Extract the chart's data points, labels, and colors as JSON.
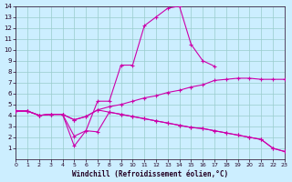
{
  "xlabel": "Windchill (Refroidissement éolien,°C)",
  "bg_color": "#cceeff",
  "line_color": "#cc00aa",
  "grid_color": "#99cccc",
  "xlim": [
    0,
    23
  ],
  "ylim": [
    0,
    14
  ],
  "xticks": [
    0,
    1,
    2,
    3,
    4,
    5,
    6,
    7,
    8,
    9,
    10,
    11,
    12,
    13,
    14,
    15,
    16,
    17,
    18,
    19,
    20,
    21,
    22,
    23
  ],
  "yticks": [
    1,
    2,
    3,
    4,
    5,
    6,
    7,
    8,
    9,
    10,
    11,
    12,
    13,
    14
  ],
  "lines": [
    {
      "x": [
        0,
        1,
        2,
        3,
        4,
        5,
        6,
        7,
        8,
        9,
        10,
        11,
        12,
        13,
        14,
        15,
        16,
        17
      ],
      "y": [
        4.4,
        4.4,
        4.0,
        4.1,
        4.1,
        2.1,
        2.6,
        5.3,
        5.3,
        8.6,
        8.6,
        12.2,
        13.0,
        13.8,
        14.0,
        10.5,
        9.0,
        8.5
      ]
    },
    {
      "x": [
        0,
        1,
        2,
        3,
        4,
        5,
        6,
        7,
        8,
        9,
        10,
        11,
        12,
        13,
        14,
        15,
        16,
        17,
        18,
        19,
        20,
        21,
        22,
        23
      ],
      "y": [
        4.4,
        4.4,
        4.0,
        4.1,
        4.1,
        3.6,
        3.9,
        4.5,
        4.8,
        5.0,
        5.3,
        5.6,
        5.8,
        6.1,
        6.3,
        6.6,
        6.8,
        7.2,
        7.3,
        7.4,
        7.4,
        7.3,
        7.3,
        7.3
      ]
    },
    {
      "x": [
        0,
        1,
        2,
        3,
        4,
        5,
        6,
        7,
        8,
        9,
        10,
        11,
        12,
        13,
        14,
        15,
        16,
        17,
        18,
        19,
        20,
        21,
        22,
        23
      ],
      "y": [
        4.4,
        4.4,
        4.0,
        4.1,
        4.1,
        3.6,
        3.9,
        4.5,
        4.3,
        4.1,
        3.9,
        3.7,
        3.5,
        3.3,
        3.1,
        2.9,
        2.8,
        2.6,
        2.4,
        2.2,
        2.0,
        1.8,
        1.0,
        0.7
      ]
    },
    {
      "x": [
        0,
        1,
        2,
        3,
        4,
        5,
        6,
        7,
        8,
        9,
        10,
        11,
        12,
        13,
        14,
        15,
        16,
        17,
        18,
        19,
        20,
        21,
        22,
        23
      ],
      "y": [
        4.4,
        4.4,
        4.0,
        4.1,
        4.1,
        1.2,
        2.6,
        2.5,
        4.3,
        4.1,
        3.9,
        3.7,
        3.5,
        3.3,
        3.1,
        2.9,
        2.8,
        2.6,
        2.4,
        2.2,
        2.0,
        1.8,
        1.0,
        0.7
      ]
    }
  ]
}
